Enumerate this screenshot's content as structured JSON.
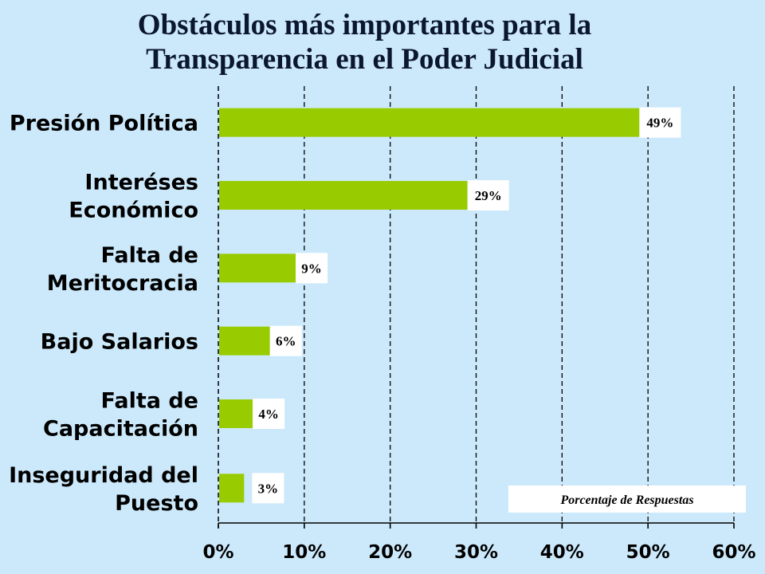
{
  "chart_data": {
    "type": "bar",
    "orientation": "horizontal",
    "title": [
      "Obstáculos más importantes para la",
      "Transparencia en el Poder Judicial"
    ],
    "categories": [
      [
        "Presión Política"
      ],
      [
        "Interéses",
        "Económico"
      ],
      [
        "Falta de",
        "Meritocracia"
      ],
      [
        "Bajo Salarios"
      ],
      [
        "Falta de",
        "Capacitación"
      ],
      [
        "Inseguridad del",
        "Puesto"
      ]
    ],
    "values": [
      49,
      29,
      9,
      6,
      4,
      3
    ],
    "data_labels": [
      "49%",
      "29%",
      "9%",
      "6%",
      "4%",
      "3%"
    ],
    "xlim": [
      0,
      60
    ],
    "x_ticks": [
      0,
      10,
      20,
      30,
      40,
      50,
      60
    ],
    "x_tick_labels": [
      "0%",
      "10%",
      "20%",
      "30%",
      "40%",
      "50%",
      "60%"
    ],
    "xlabel": "Porcentaje de Respuestas",
    "grid": "vertical dashed",
    "bar_color": "#99cc00",
    "background_color": "#cce9fb",
    "title_color": "#0b1630"
  }
}
